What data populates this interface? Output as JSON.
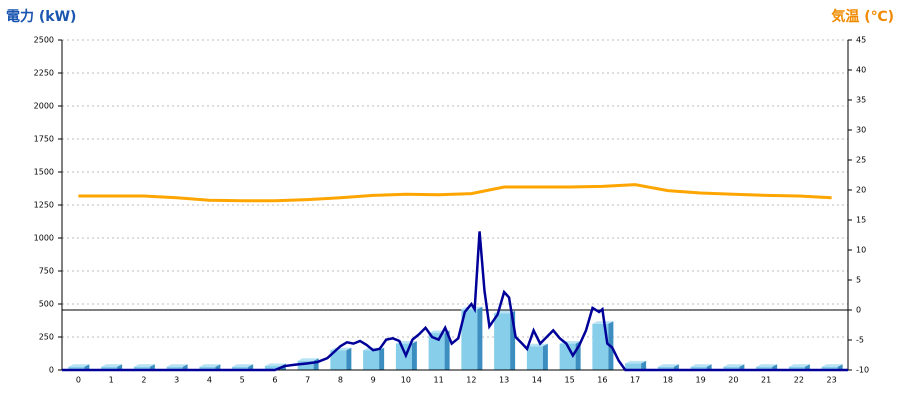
{
  "chart_data": {
    "type": "bar-line",
    "left_title": "電力 (kW)",
    "right_title": "気温 (℃)",
    "categories": [
      "0",
      "1",
      "2",
      "3",
      "4",
      "5",
      "6",
      "7",
      "8",
      "9",
      "10",
      "11",
      "12",
      "13",
      "14",
      "15",
      "16",
      "17",
      "18",
      "19",
      "20",
      "21",
      "22",
      "23"
    ],
    "ylim": [
      0,
      2500
    ],
    "yticks": [
      0,
      250,
      500,
      750,
      1000,
      1250,
      1500,
      1750,
      2000,
      2250,
      2500
    ],
    "y2lim": [
      -10,
      45
    ],
    "y2ticks": [
      -10,
      -5,
      0,
      5,
      10,
      15,
      20,
      25,
      30,
      35,
      40,
      45
    ],
    "y2_reference": 0,
    "grid": true,
    "bars": {
      "color": "#87ceeb",
      "values": [
        25,
        25,
        25,
        25,
        25,
        25,
        30,
        70,
        150,
        150,
        200,
        280,
        460,
        430,
        180,
        200,
        350,
        50,
        25,
        25,
        25,
        25,
        25,
        25
      ]
    },
    "detail": {
      "color": "#000099",
      "xlim": [
        -0.5,
        23.5
      ],
      "x": [
        -0.5,
        6,
        6.3,
        6.6,
        7,
        7.3,
        7.6,
        8,
        8.2,
        8.4,
        8.6,
        8.8,
        9,
        9.2,
        9.4,
        9.6,
        9.8,
        10,
        10.2,
        10.4,
        10.6,
        10.8,
        11,
        11.2,
        11.4,
        11.6,
        11.8,
        12,
        12.1,
        12.25,
        12.4,
        12.55,
        12.8,
        13,
        13.15,
        13.35,
        13.55,
        13.7,
        13.9,
        14.1,
        14.3,
        14.5,
        14.7,
        14.9,
        15.1,
        15.3,
        15.5,
        15.7,
        15.9,
        16,
        16.15,
        16.3,
        16.5,
        16.7,
        23.5
      ],
      "values": [
        0,
        0,
        30,
        40,
        50,
        60,
        90,
        180,
        210,
        200,
        220,
        190,
        150,
        160,
        230,
        240,
        220,
        110,
        230,
        270,
        320,
        250,
        230,
        320,
        200,
        240,
        440,
        500,
        460,
        1050,
        600,
        330,
        420,
        590,
        550,
        250,
        200,
        160,
        300,
        200,
        250,
        300,
        240,
        200,
        110,
        190,
        300,
        470,
        440,
        460,
        200,
        170,
        70,
        0,
        0
      ]
    },
    "temperature": {
      "color": "#ffa500",
      "axis": "y2",
      "values": [
        19,
        19,
        19,
        18.7,
        18.3,
        18.2,
        18.2,
        18.4,
        18.7,
        19.1,
        19.3,
        19.2,
        19.4,
        20.5,
        20.5,
        20.5,
        20.6,
        20.9,
        19.9,
        19.5,
        19.3,
        19.1,
        19,
        18.7
      ]
    }
  }
}
